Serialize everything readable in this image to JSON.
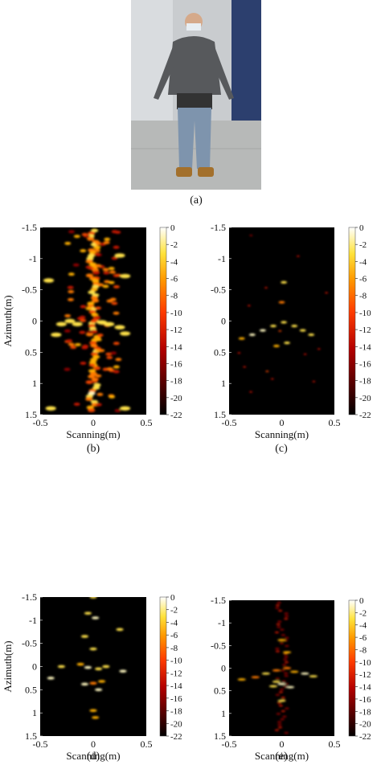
{
  "figure": {
    "panels": [
      {
        "caption": "(a)"
      },
      {
        "caption": "(b)",
        "ylabel": "Azimuth(m)",
        "xlabel": "Scanning(m)"
      },
      {
        "caption": "(c)",
        "ylabel": "",
        "xlabel": "Scanning(m)"
      },
      {
        "caption": "(d)",
        "ylabel": "Azimuth(m)",
        "xlabel": "Scanning(m)"
      },
      {
        "caption": "(e)",
        "ylabel": "",
        "xlabel": "Scanning(m)"
      }
    ],
    "y_ticks": [
      "-1.5",
      "-1",
      "-0.5",
      "0",
      "0.5",
      "1",
      "1.5"
    ],
    "x_ticks": [
      "-0.5",
      "0",
      "0.5"
    ],
    "colorbar_ticks": [
      "0",
      "-2",
      "-4",
      "-6",
      "-8",
      "-10",
      "-12",
      "-14",
      "-16",
      "-18",
      "-20",
      "-22"
    ]
  },
  "chart_data": [
    {
      "type": "heatmap",
      "panel": "b",
      "xlabel": "Scanning(m)",
      "ylabel": "Azimuth(m)",
      "xlim": [
        -0.5,
        0.5
      ],
      "ylim": [
        -1.5,
        1.5
      ],
      "y_reversed": true,
      "clim": [
        -22,
        0
      ],
      "colormap": "hot"
    },
    {
      "type": "heatmap",
      "panel": "c",
      "xlabel": "Scanning(m)",
      "ylabel": "",
      "xlim": [
        -0.5,
        0.5
      ],
      "ylim": [
        -1.5,
        1.5
      ],
      "y_reversed": true,
      "clim": [
        -22,
        0
      ],
      "colormap": "hot"
    },
    {
      "type": "heatmap",
      "panel": "d",
      "xlabel": "Scanning(m)",
      "ylabel": "Azimuth(m)",
      "xlim": [
        -0.5,
        0.5
      ],
      "ylim": [
        -1.5,
        1.5
      ],
      "y_reversed": true,
      "clim": [
        -22,
        0
      ],
      "colormap": "hot"
    },
    {
      "type": "heatmap",
      "panel": "e",
      "xlabel": "Scanning(m)",
      "ylabel": "",
      "xlim": [
        -0.5,
        0.5
      ],
      "ylim": [
        -1.5,
        1.5
      ],
      "y_reversed": true,
      "clim": [
        -22,
        0
      ],
      "colormap": "hot"
    }
  ]
}
